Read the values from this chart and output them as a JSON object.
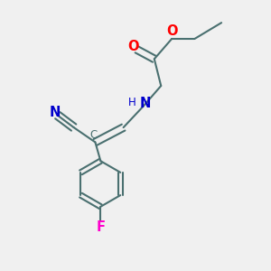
{
  "background_color": "#f0f0f0",
  "bond_color": "#4a7070",
  "atom_colors": {
    "O": "#ff0000",
    "N": "#0000cc",
    "F": "#ff00cc",
    "C_label": "#4a7070"
  },
  "figsize": [
    3.0,
    3.0
  ],
  "dpi": 100
}
